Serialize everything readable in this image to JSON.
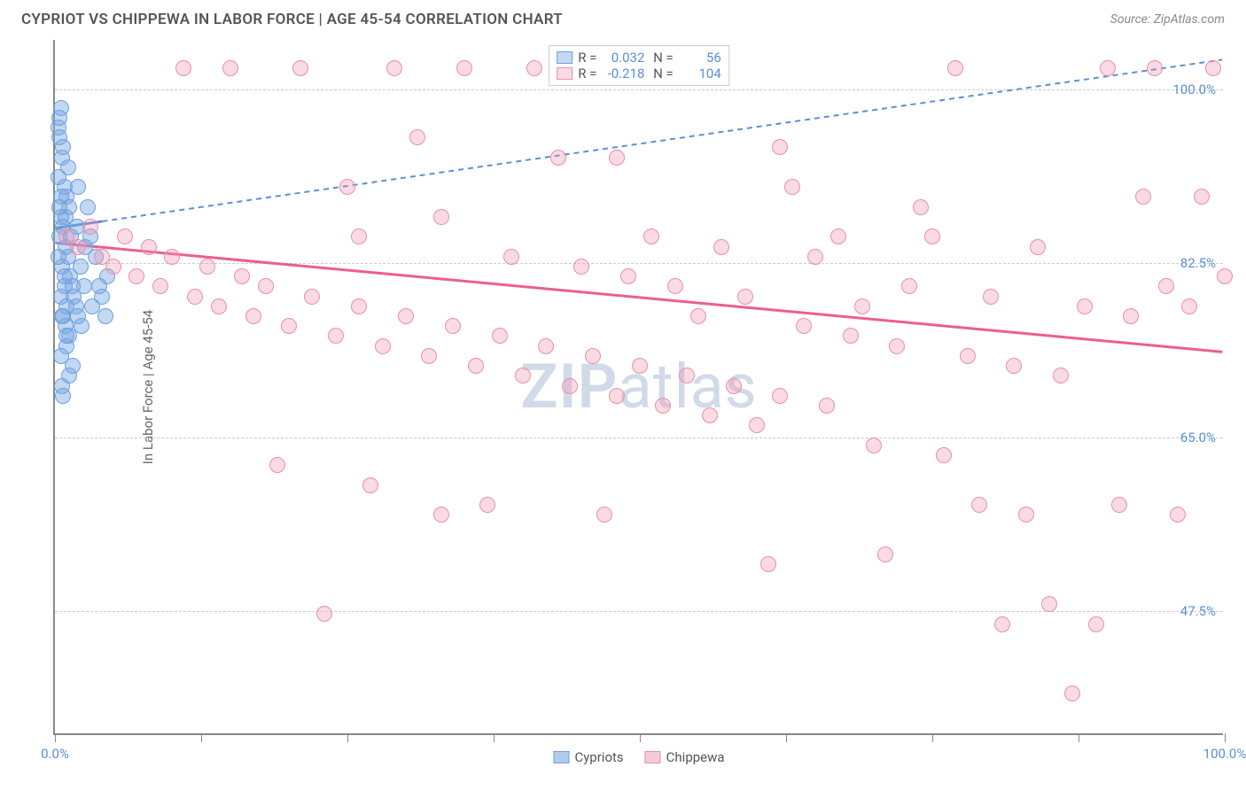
{
  "title": "CYPRIOT VS CHIPPEWA IN LABOR FORCE | AGE 45-54 CORRELATION CHART",
  "source": "Source: ZipAtlas.com",
  "ylabel": "In Labor Force | Age 45-54",
  "watermark_a": "ZIP",
  "watermark_b": "atlas",
  "chart": {
    "type": "scatter",
    "xlim": [
      0,
      100
    ],
    "ylim": [
      35,
      105
    ],
    "xtick_positions": [
      0,
      12.5,
      25,
      37.5,
      50,
      62.5,
      75,
      87.5,
      100
    ],
    "xtick_labels": {
      "0": "0.0%",
      "100": "100.0%"
    },
    "yticks": [
      47.5,
      65.0,
      82.5,
      100.0
    ],
    "ytick_labels": [
      "47.5%",
      "65.0%",
      "82.5%",
      "100.0%"
    ],
    "grid_color": "#cccccc",
    "background_color": "#ffffff",
    "axis_color": "#888888",
    "tick_label_color": "#5b8fd6",
    "point_radius": 9,
    "series": [
      {
        "name": "Cypriots",
        "fill": "rgba(123,169,226,0.45)",
        "stroke": "#6d9fe0",
        "r_value": "0.032",
        "n_value": "56",
        "trend": {
          "x1": 0,
          "y1": 86,
          "x2": 100,
          "y2": 103,
          "color": "#5b8fd6",
          "width": 2,
          "dash": "6,5",
          "solid_until_x": 4
        },
        "points": [
          [
            0.3,
            96
          ],
          [
            0.5,
            98
          ],
          [
            0.4,
            95
          ],
          [
            0.6,
            93
          ],
          [
            0.3,
            91
          ],
          [
            0.8,
            90
          ],
          [
            1.0,
            89
          ],
          [
            1.2,
            88
          ],
          [
            0.5,
            87
          ],
          [
            0.7,
            86
          ],
          [
            0.4,
            85
          ],
          [
            0.9,
            84
          ],
          [
            1.1,
            83
          ],
          [
            0.6,
            82
          ],
          [
            1.3,
            81
          ],
          [
            0.8,
            80
          ],
          [
            1.5,
            80
          ],
          [
            0.5,
            79
          ],
          [
            1.0,
            78
          ],
          [
            1.8,
            78
          ],
          [
            0.7,
            77
          ],
          [
            2.0,
            77
          ],
          [
            0.9,
            76
          ],
          [
            1.2,
            75
          ],
          [
            2.2,
            82
          ],
          [
            2.5,
            80
          ],
          [
            3.0,
            85
          ],
          [
            3.5,
            83
          ],
          [
            4.0,
            79
          ],
          [
            4.5,
            81
          ],
          [
            1.0,
            74
          ],
          [
            1.5,
            72
          ],
          [
            0.6,
            70
          ],
          [
            2.0,
            90
          ],
          [
            2.8,
            88
          ],
          [
            0.4,
            97
          ],
          [
            0.7,
            94
          ],
          [
            1.1,
            92
          ],
          [
            0.5,
            89
          ],
          [
            0.9,
            87
          ],
          [
            1.4,
            85
          ],
          [
            0.3,
            83
          ],
          [
            0.8,
            81
          ],
          [
            1.6,
            79
          ],
          [
            0.6,
            77
          ],
          [
            1.0,
            75
          ],
          [
            2.3,
            76
          ],
          [
            3.2,
            78
          ],
          [
            0.5,
            73
          ],
          [
            1.2,
            71
          ],
          [
            0.7,
            69
          ],
          [
            2.6,
            84
          ],
          [
            3.8,
            80
          ],
          [
            4.3,
            77
          ],
          [
            1.9,
            86
          ],
          [
            0.4,
            88
          ]
        ]
      },
      {
        "name": "Chippewa",
        "fill": "rgba(240,150,175,0.35)",
        "stroke": "#e98fab",
        "r_value": "-0.218",
        "n_value": "104",
        "trend": {
          "x1": 0,
          "y1": 84.5,
          "x2": 100,
          "y2": 73.5,
          "color": "#ec5f89",
          "width": 3,
          "dash": null
        },
        "points": [
          [
            1,
            85
          ],
          [
            2,
            84
          ],
          [
            3,
            86
          ],
          [
            4,
            83
          ],
          [
            5,
            82
          ],
          [
            6,
            85
          ],
          [
            7,
            81
          ],
          [
            8,
            84
          ],
          [
            9,
            80
          ],
          [
            10,
            83
          ],
          [
            11,
            102
          ],
          [
            12,
            79
          ],
          [
            13,
            82
          ],
          [
            14,
            78
          ],
          [
            15,
            102
          ],
          [
            16,
            81
          ],
          [
            17,
            77
          ],
          [
            18,
            80
          ],
          [
            19,
            62
          ],
          [
            20,
            76
          ],
          [
            21,
            102
          ],
          [
            22,
            79
          ],
          [
            23,
            47
          ],
          [
            24,
            75
          ],
          [
            25,
            90
          ],
          [
            26,
            78
          ],
          [
            27,
            60
          ],
          [
            28,
            74
          ],
          [
            29,
            102
          ],
          [
            30,
            77
          ],
          [
            31,
            95
          ],
          [
            32,
            73
          ],
          [
            33,
            57
          ],
          [
            34,
            76
          ],
          [
            35,
            102
          ],
          [
            36,
            72
          ],
          [
            37,
            58
          ],
          [
            38,
            75
          ],
          [
            39,
            83
          ],
          [
            40,
            71
          ],
          [
            41,
            102
          ],
          [
            42,
            74
          ],
          [
            43,
            93
          ],
          [
            44,
            70
          ],
          [
            45,
            82
          ],
          [
            46,
            73
          ],
          [
            47,
            57
          ],
          [
            48,
            69
          ],
          [
            49,
            81
          ],
          [
            50,
            72
          ],
          [
            51,
            85
          ],
          [
            52,
            68
          ],
          [
            53,
            80
          ],
          [
            54,
            71
          ],
          [
            55,
            77
          ],
          [
            56,
            67
          ],
          [
            57,
            84
          ],
          [
            58,
            70
          ],
          [
            59,
            79
          ],
          [
            60,
            66
          ],
          [
            61,
            52
          ],
          [
            62,
            69
          ],
          [
            63,
            90
          ],
          [
            64,
            76
          ],
          [
            65,
            83
          ],
          [
            66,
            68
          ],
          [
            67,
            85
          ],
          [
            68,
            75
          ],
          [
            69,
            78
          ],
          [
            70,
            64
          ],
          [
            71,
            53
          ],
          [
            72,
            74
          ],
          [
            73,
            80
          ],
          [
            74,
            88
          ],
          [
            75,
            85
          ],
          [
            76,
            63
          ],
          [
            77,
            102
          ],
          [
            78,
            73
          ],
          [
            79,
            58
          ],
          [
            80,
            79
          ],
          [
            81,
            46
          ],
          [
            82,
            72
          ],
          [
            83,
            57
          ],
          [
            84,
            84
          ],
          [
            85,
            48
          ],
          [
            86,
            71
          ],
          [
            87,
            39
          ],
          [
            88,
            78
          ],
          [
            89,
            46
          ],
          [
            90,
            102
          ],
          [
            91,
            58
          ],
          [
            92,
            77
          ],
          [
            93,
            89
          ],
          [
            94,
            102
          ],
          [
            95,
            80
          ],
          [
            96,
            57
          ],
          [
            97,
            78
          ],
          [
            98,
            89
          ],
          [
            99,
            102
          ],
          [
            100,
            81
          ],
          [
            62,
            94
          ],
          [
            48,
            93
          ],
          [
            33,
            87
          ],
          [
            26,
            85
          ]
        ]
      }
    ]
  },
  "legend_bottom": [
    {
      "swatch_fill": "rgba(123,169,226,0.6)",
      "swatch_stroke": "#6d9fe0",
      "label": "Cypriots"
    },
    {
      "swatch_fill": "rgba(240,150,175,0.5)",
      "swatch_stroke": "#e98fab",
      "label": "Chippewa"
    }
  ]
}
